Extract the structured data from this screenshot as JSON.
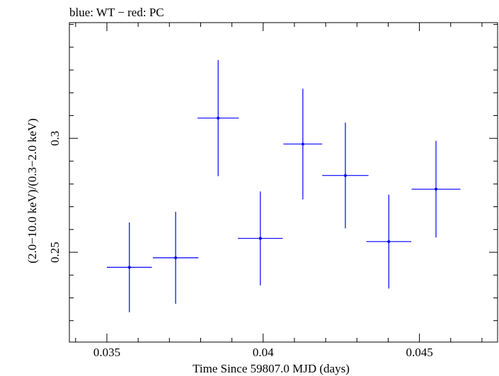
{
  "chart_data": {
    "type": "scatter",
    "title": "blue: WT − red: PC",
    "xlabel": "Time Since 59807.0 MJD (days)",
    "ylabel": "(2.0−10.0 keV)/(0.3−2.0 keV)",
    "xlim": [
      0.0338,
      0.0475
    ],
    "ylim": [
      0.2106,
      0.3508
    ],
    "x_ticks": [
      {
        "value": 0.035,
        "label": "0.035"
      },
      {
        "value": 0.04,
        "label": "0.04"
      },
      {
        "value": 0.045,
        "label": "0.045"
      }
    ],
    "y_ticks": [
      {
        "value": 0.25,
        "label": "0.25"
      },
      {
        "value": 0.3,
        "label": "0.3"
      }
    ],
    "grid": false,
    "series": [
      {
        "name": "WT",
        "color": "#0000ff",
        "points": [
          {
            "x": 0.03572,
            "y": 0.2434,
            "xerr": 0.00072,
            "yerr": 0.0197
          },
          {
            "x": 0.0372,
            "y": 0.2476,
            "xerr": 0.00073,
            "yerr": 0.0202
          },
          {
            "x": 0.03856,
            "y": 0.3089,
            "xerr": 0.00066,
            "yerr": 0.0255
          },
          {
            "x": 0.03991,
            "y": 0.2561,
            "xerr": 0.00072,
            "yerr": 0.0206
          },
          {
            "x": 0.04127,
            "y": 0.2975,
            "xerr": 0.00062,
            "yerr": 0.0243
          },
          {
            "x": 0.04263,
            "y": 0.2837,
            "xerr": 0.00074,
            "yerr": 0.0232
          },
          {
            "x": 0.04402,
            "y": 0.2547,
            "xerr": 0.00072,
            "yerr": 0.0206
          },
          {
            "x": 0.04553,
            "y": 0.2777,
            "xerr": 0.00078,
            "yerr": 0.0212
          }
        ]
      }
    ]
  }
}
